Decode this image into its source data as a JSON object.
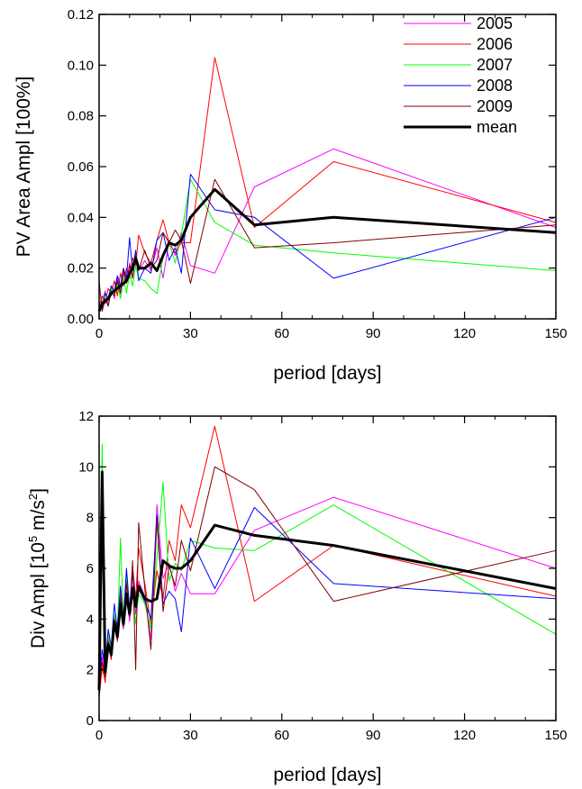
{
  "chart_data": [
    {
      "type": "line",
      "title": "",
      "xlabel": "period [days]",
      "ylabel": "PV Area  Ampl [100%]",
      "xlim": [
        0,
        150
      ],
      "ylim": [
        0,
        0.12
      ],
      "xticks": [
        0,
        30,
        60,
        90,
        120,
        150
      ],
      "xtick_labels": [
        "0",
        "30",
        "60",
        "90",
        "120",
        "150"
      ],
      "yticks": [
        0,
        0.02,
        0.04,
        0.06,
        0.08,
        0.1,
        0.12
      ],
      "ytick_labels": [
        "0.00",
        "0.02",
        "0.04",
        "0.06",
        "0.08",
        "0.10",
        "0.12"
      ],
      "grid": false,
      "legend": {
        "placement": "top-right",
        "entries": [
          "2005",
          "2006",
          "2007",
          "2008",
          "2009",
          "mean"
        ]
      },
      "series": [
        {
          "name": "2005",
          "color": "#ff00ff",
          "x": [
            0,
            1,
            2,
            3,
            4,
            5,
            6,
            7,
            8,
            9,
            10,
            11,
            12,
            13,
            15,
            17,
            19,
            21,
            23,
            25,
            27,
            30,
            38,
            51,
            77,
            150
          ],
          "y": [
            0.004,
            0.007,
            0.011,
            0.005,
            0.013,
            0.008,
            0.016,
            0.011,
            0.018,
            0.014,
            0.022,
            0.017,
            0.025,
            0.019,
            0.023,
            0.019,
            0.028,
            0.016,
            0.031,
            0.025,
            0.034,
            0.021,
            0.018,
            0.052,
            0.067,
            0.036
          ]
        },
        {
          "name": "2006",
          "color": "#ff0000",
          "x": [
            0,
            1,
            2,
            3,
            4,
            5,
            6,
            7,
            8,
            9,
            10,
            11,
            12,
            13,
            15,
            17,
            19,
            21,
            23,
            25,
            27,
            30,
            38,
            51,
            77,
            150
          ],
          "y": [
            0.005,
            0.009,
            0.006,
            0.012,
            0.01,
            0.015,
            0.009,
            0.018,
            0.013,
            0.02,
            0.016,
            0.024,
            0.021,
            0.033,
            0.026,
            0.022,
            0.031,
            0.039,
            0.03,
            0.026,
            0.03,
            0.03,
            0.103,
            0.036,
            0.062,
            0.038
          ]
        },
        {
          "name": "2007",
          "color": "#00ff00",
          "x": [
            0,
            1,
            2,
            3,
            4,
            5,
            6,
            7,
            8,
            9,
            10,
            11,
            12,
            13,
            15,
            17,
            19,
            21,
            23,
            25,
            27,
            30,
            38,
            51,
            77,
            150
          ],
          "y": [
            0.003,
            0.006,
            0.01,
            0.007,
            0.012,
            0.009,
            0.014,
            0.008,
            0.016,
            0.01,
            0.018,
            0.013,
            0.021,
            0.016,
            0.015,
            0.012,
            0.01,
            0.024,
            0.03,
            0.022,
            0.033,
            0.055,
            0.038,
            0.029,
            0.026,
            0.019
          ]
        },
        {
          "name": "2008",
          "color": "#0000ff",
          "x": [
            0,
            1,
            2,
            3,
            4,
            5,
            6,
            7,
            8,
            9,
            10,
            11,
            12,
            13,
            15,
            17,
            19,
            21,
            23,
            25,
            27,
            30,
            38,
            51,
            77,
            150
          ],
          "y": [
            0.006,
            0.004,
            0.01,
            0.008,
            0.013,
            0.011,
            0.017,
            0.013,
            0.02,
            0.016,
            0.032,
            0.019,
            0.027,
            0.015,
            0.02,
            0.018,
            0.031,
            0.034,
            0.023,
            0.028,
            0.018,
            0.057,
            0.043,
            0.04,
            0.016,
            0.04
          ]
        },
        {
          "name": "2009",
          "color": "#800000",
          "x": [
            0,
            1,
            2,
            3,
            4,
            5,
            6,
            7,
            8,
            9,
            10,
            11,
            12,
            13,
            15,
            17,
            19,
            21,
            23,
            25,
            27,
            30,
            38,
            51,
            77,
            150
          ],
          "y": [
            0.015,
            0.003,
            0.008,
            0.005,
            0.011,
            0.009,
            0.015,
            0.01,
            0.019,
            0.014,
            0.021,
            0.016,
            0.025,
            0.019,
            0.027,
            0.02,
            0.023,
            0.034,
            0.03,
            0.035,
            0.031,
            0.014,
            0.055,
            0.028,
            0.03,
            0.037
          ]
        },
        {
          "name": "mean",
          "color": "#000000",
          "width": 3,
          "x": [
            0,
            1,
            2,
            3,
            4,
            5,
            6,
            7,
            8,
            9,
            10,
            11,
            12,
            13,
            15,
            17,
            19,
            21,
            23,
            25,
            27,
            30,
            38,
            51,
            77,
            150
          ],
          "y": [
            0.003,
            0.006,
            0.007,
            0.008,
            0.01,
            0.011,
            0.012,
            0.013,
            0.014,
            0.015,
            0.018,
            0.02,
            0.024,
            0.02,
            0.02,
            0.022,
            0.019,
            0.025,
            0.03,
            0.029,
            0.031,
            0.04,
            0.051,
            0.037,
            0.04,
            0.034
          ]
        }
      ]
    },
    {
      "type": "line",
      "title": "",
      "xlabel": "period [days]",
      "ylabel_main": "Div Ampl [10",
      "ylabel_sup": "5",
      "ylabel_mid": " m/s",
      "ylabel_sup2": "2",
      "ylabel_end": "]",
      "xlim": [
        0,
        150
      ],
      "ylim": [
        0,
        12
      ],
      "xticks": [
        0,
        30,
        60,
        90,
        120,
        150
      ],
      "xtick_labels": [
        "0",
        "30",
        "60",
        "90",
        "120",
        "150"
      ],
      "yticks": [
        0,
        2,
        4,
        6,
        8,
        10,
        12
      ],
      "ytick_labels": [
        "0",
        "2",
        "4",
        "6",
        "8",
        "10",
        "12"
      ],
      "grid": false,
      "series": [
        {
          "name": "2005",
          "color": "#ff00ff",
          "x": [
            0,
            1,
            2,
            3,
            4,
            5,
            6,
            7,
            8,
            9,
            10,
            11,
            12,
            13,
            15,
            17,
            19,
            21,
            23,
            25,
            27,
            30,
            38,
            51,
            77,
            150
          ],
          "y": [
            1.2,
            2.5,
            1.8,
            3.2,
            2.6,
            3.8,
            3.1,
            4.4,
            3.6,
            5.1,
            3.9,
            5.3,
            4.2,
            5.5,
            4.9,
            3.2,
            8.5,
            5.6,
            6.2,
            5.1,
            5.8,
            5.0,
            5.0,
            7.5,
            8.8,
            6.0
          ]
        },
        {
          "name": "2006",
          "color": "#ff0000",
          "x": [
            0,
            1,
            2,
            3,
            4,
            5,
            6,
            7,
            8,
            9,
            10,
            11,
            12,
            13,
            15,
            17,
            19,
            21,
            23,
            25,
            27,
            30,
            38,
            51,
            77,
            150
          ],
          "y": [
            0.9,
            2.1,
            1.5,
            3.0,
            2.4,
            4.1,
            3.3,
            5.0,
            4.1,
            5.6,
            4.3,
            6.1,
            4.8,
            6.8,
            5.4,
            3.8,
            5.9,
            4.8,
            7.1,
            6.3,
            8.5,
            7.6,
            11.6,
            4.7,
            6.9,
            4.9
          ]
        },
        {
          "name": "2007",
          "color": "#00ff00",
          "x": [
            0,
            1,
            2,
            3,
            4,
            5,
            6,
            7,
            8,
            9,
            10,
            11,
            12,
            13,
            15,
            17,
            19,
            21,
            23,
            25,
            27,
            30,
            38,
            51,
            77,
            150
          ],
          "y": [
            2.0,
            10.9,
            2.2,
            3.4,
            2.7,
            4.2,
            3.4,
            7.2,
            3.9,
            5.8,
            4.1,
            5.2,
            3.8,
            5.0,
            4.6,
            3.6,
            6.4,
            9.4,
            5.5,
            6.2,
            5.9,
            7.1,
            6.8,
            6.7,
            8.5,
            3.4
          ]
        },
        {
          "name": "2008",
          "color": "#0000ff",
          "x": [
            0,
            1,
            2,
            3,
            4,
            5,
            6,
            7,
            8,
            9,
            10,
            11,
            12,
            13,
            15,
            17,
            19,
            21,
            23,
            25,
            27,
            30,
            38,
            51,
            77,
            150
          ],
          "y": [
            1.4,
            2.8,
            2.0,
            3.6,
            2.9,
            4.6,
            3.6,
            5.3,
            4.0,
            6.0,
            4.4,
            5.8,
            4.6,
            5.2,
            4.7,
            4.0,
            8.1,
            4.6,
            5.1,
            4.8,
            3.5,
            7.2,
            5.2,
            8.4,
            5.4,
            4.8
          ]
        },
        {
          "name": "2009",
          "color": "#800000",
          "x": [
            0,
            1,
            2,
            3,
            4,
            5,
            6,
            7,
            8,
            9,
            10,
            11,
            12,
            13,
            15,
            17,
            19,
            21,
            23,
            25,
            27,
            30,
            38,
            51,
            77,
            150
          ],
          "y": [
            1.0,
            2.3,
            1.7,
            3.1,
            2.5,
            4.0,
            3.2,
            4.8,
            3.7,
            5.4,
            4.1,
            6.3,
            2.0,
            7.8,
            5.2,
            2.8,
            7.9,
            4.3,
            6.1,
            5.3,
            7.1,
            5.9,
            10.0,
            9.1,
            4.7,
            6.7
          ]
        },
        {
          "name": "mean",
          "color": "#000000",
          "width": 3,
          "x": [
            0,
            1,
            2,
            3,
            4,
            5,
            6,
            7,
            8,
            9,
            10,
            11,
            12,
            13,
            15,
            17,
            19,
            21,
            23,
            25,
            27,
            30,
            38,
            51,
            77,
            150
          ],
          "y": [
            1.2,
            9.8,
            1.9,
            3.0,
            2.6,
            3.9,
            3.3,
            4.6,
            3.8,
            5.0,
            4.2,
            5.2,
            4.5,
            5.3,
            4.8,
            4.7,
            4.8,
            6.3,
            6.1,
            6.0,
            6.0,
            6.3,
            7.7,
            7.3,
            6.9,
            5.2
          ]
        }
      ]
    }
  ]
}
